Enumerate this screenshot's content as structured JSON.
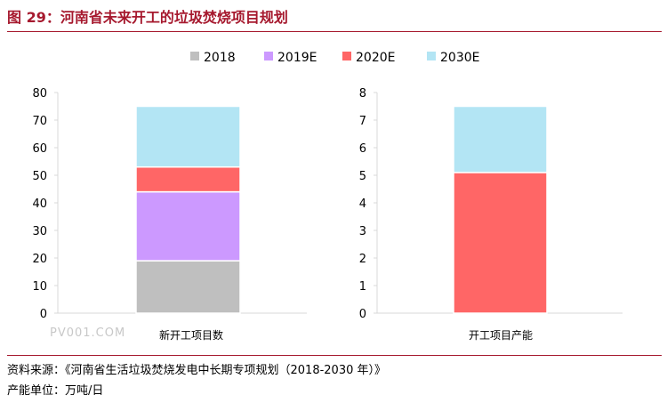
{
  "title": "图 29：河南省未来开工的垃圾焚烧项目规划",
  "legend": [
    "2018",
    "2019E",
    "2020E",
    "2030E"
  ],
  "colors": {
    "2018": "#bfbfbf",
    "2019E": "#cc99ff",
    "2020E": "#ff6666",
    "2030E": "#b3e5f4",
    "rule": "#a6192e",
    "axis": "#d9d9d9"
  },
  "chart_data": [
    {
      "type": "bar",
      "stacked": true,
      "categories": [
        "新开工项目数"
      ],
      "series": [
        {
          "name": "2018",
          "values": [
            19
          ]
        },
        {
          "name": "2019E",
          "values": [
            25
          ]
        },
        {
          "name": "2020E",
          "values": [
            9
          ]
        },
        {
          "name": "2030E",
          "values": [
            22
          ]
        }
      ],
      "ylim": [
        0,
        80
      ],
      "yticks": [
        0,
        10,
        20,
        30,
        40,
        50,
        60,
        70,
        80
      ],
      "legend_position": "top"
    },
    {
      "type": "bar",
      "stacked": true,
      "categories": [
        "开工项目产能"
      ],
      "series": [
        {
          "name": "2018",
          "values": [
            0
          ]
        },
        {
          "name": "2019E",
          "values": [
            0
          ]
        },
        {
          "name": "2020E",
          "values": [
            5.1
          ]
        },
        {
          "name": "2030E",
          "values": [
            2.4
          ]
        }
      ],
      "ylim": [
        0,
        8
      ],
      "yticks": [
        0,
        1,
        2,
        3,
        4,
        5,
        6,
        7,
        8
      ],
      "legend_position": "top"
    }
  ],
  "source": "资料来源：《河南省生活垃圾焚烧发电中长期专项规划（2018-2030 年）》",
  "unit_note": "产能单位：万吨/日",
  "watermark": "PV001.COM"
}
